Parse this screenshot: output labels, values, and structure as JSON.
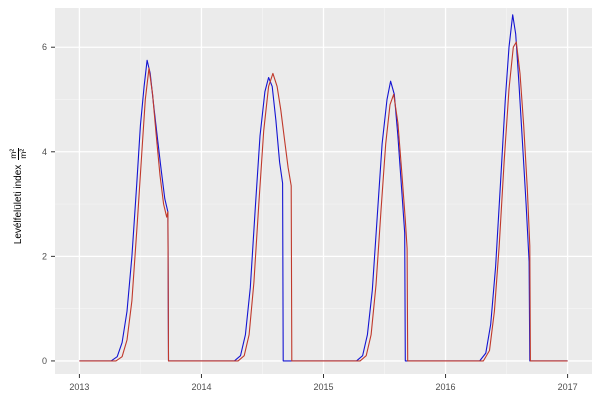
{
  "chart_data": {
    "type": "line",
    "title": "",
    "xlabel": "",
    "ylabel": "Levélfelületi index",
    "unit_numerator": "m²",
    "unit_denominator": "m²",
    "x_ticks": [
      2013,
      2014,
      2015,
      2016,
      2017
    ],
    "y_ticks": [
      0,
      2,
      4,
      6
    ],
    "x_range": [
      2012.8,
      2017.2
    ],
    "y_range": [
      -0.25,
      6.75
    ],
    "legend": "none",
    "grid": "on",
    "colors": {
      "panel_bg": "#EBEBEB",
      "grid_major": "#FFFFFF",
      "grid_minor": "#F4F4F4",
      "tick_mark": "#333333",
      "tick_label": "#4D4D4D",
      "series_blue": "#1414D2",
      "series_red": "#C0392B"
    },
    "series": [
      {
        "name": "blue-line",
        "color": "#1414D2",
        "points": [
          [
            2013.0,
            0
          ],
          [
            2013.26,
            0
          ],
          [
            2013.31,
            0.08
          ],
          [
            2013.35,
            0.35
          ],
          [
            2013.39,
            0.95
          ],
          [
            2013.43,
            2.0
          ],
          [
            2013.47,
            3.4
          ],
          [
            2013.5,
            4.5
          ],
          [
            2013.53,
            5.25
          ],
          [
            2013.555,
            5.75
          ],
          [
            2013.58,
            5.5
          ],
          [
            2013.61,
            4.85
          ],
          [
            2013.64,
            4.25
          ],
          [
            2013.67,
            3.65
          ],
          [
            2013.7,
            3.1
          ],
          [
            2013.725,
            2.85
          ],
          [
            2013.73,
            0
          ],
          [
            2014.0,
            0
          ],
          [
            2014.27,
            0
          ],
          [
            2014.32,
            0.1
          ],
          [
            2014.36,
            0.5
          ],
          [
            2014.4,
            1.4
          ],
          [
            2014.44,
            2.9
          ],
          [
            2014.48,
            4.3
          ],
          [
            2014.52,
            5.15
          ],
          [
            2014.55,
            5.42
          ],
          [
            2014.58,
            5.25
          ],
          [
            2014.61,
            4.6
          ],
          [
            2014.64,
            3.8
          ],
          [
            2014.665,
            3.4
          ],
          [
            2014.67,
            0
          ],
          [
            2015.0,
            0
          ],
          [
            2015.27,
            0
          ],
          [
            2015.32,
            0.1
          ],
          [
            2015.36,
            0.5
          ],
          [
            2015.4,
            1.35
          ],
          [
            2015.44,
            2.75
          ],
          [
            2015.48,
            4.15
          ],
          [
            2015.52,
            5.0
          ],
          [
            2015.55,
            5.35
          ],
          [
            2015.58,
            5.1
          ],
          [
            2015.61,
            4.3
          ],
          [
            2015.64,
            3.3
          ],
          [
            2015.665,
            2.45
          ],
          [
            2015.67,
            0
          ],
          [
            2016.0,
            0
          ],
          [
            2016.28,
            0
          ],
          [
            2016.33,
            0.15
          ],
          [
            2016.37,
            0.7
          ],
          [
            2016.41,
            1.8
          ],
          [
            2016.45,
            3.4
          ],
          [
            2016.49,
            5.0
          ],
          [
            2016.52,
            6.0
          ],
          [
            2016.55,
            6.62
          ],
          [
            2016.575,
            6.25
          ],
          [
            2016.6,
            5.35
          ],
          [
            2016.63,
            4.2
          ],
          [
            2016.66,
            3.0
          ],
          [
            2016.685,
            1.9
          ],
          [
            2016.69,
            0
          ],
          [
            2017.0,
            0
          ]
        ]
      },
      {
        "name": "red-line",
        "color": "#C0392B",
        "points": [
          [
            2013.0,
            0
          ],
          [
            2013.3,
            0
          ],
          [
            2013.35,
            0.08
          ],
          [
            2013.39,
            0.4
          ],
          [
            2013.43,
            1.15
          ],
          [
            2013.47,
            2.5
          ],
          [
            2013.51,
            3.95
          ],
          [
            2013.54,
            5.0
          ],
          [
            2013.57,
            5.6
          ],
          [
            2013.6,
            5.1
          ],
          [
            2013.63,
            4.3
          ],
          [
            2013.66,
            3.55
          ],
          [
            2013.69,
            3.0
          ],
          [
            2013.715,
            2.75
          ],
          [
            2013.725,
            2.85
          ],
          [
            2013.73,
            0
          ],
          [
            2014.0,
            0
          ],
          [
            2014.3,
            0
          ],
          [
            2014.35,
            0.1
          ],
          [
            2014.39,
            0.5
          ],
          [
            2014.43,
            1.5
          ],
          [
            2014.47,
            3.0
          ],
          [
            2014.51,
            4.4
          ],
          [
            2014.55,
            5.25
          ],
          [
            2014.585,
            5.5
          ],
          [
            2014.62,
            5.25
          ],
          [
            2014.65,
            4.8
          ],
          [
            2014.68,
            4.25
          ],
          [
            2014.71,
            3.7
          ],
          [
            2014.735,
            3.35
          ],
          [
            2014.74,
            0
          ],
          [
            2015.0,
            0
          ],
          [
            2015.3,
            0
          ],
          [
            2015.35,
            0.1
          ],
          [
            2015.39,
            0.5
          ],
          [
            2015.43,
            1.45
          ],
          [
            2015.47,
            2.85
          ],
          [
            2015.51,
            4.15
          ],
          [
            2015.545,
            4.9
          ],
          [
            2015.575,
            5.1
          ],
          [
            2015.61,
            4.55
          ],
          [
            2015.64,
            3.65
          ],
          [
            2015.67,
            2.7
          ],
          [
            2015.685,
            2.15
          ],
          [
            2015.69,
            0
          ],
          [
            2016.0,
            0
          ],
          [
            2016.31,
            0
          ],
          [
            2016.36,
            0.2
          ],
          [
            2016.4,
            0.95
          ],
          [
            2016.44,
            2.2
          ],
          [
            2016.48,
            3.8
          ],
          [
            2016.52,
            5.2
          ],
          [
            2016.555,
            6.0
          ],
          [
            2016.58,
            6.1
          ],
          [
            2016.61,
            5.5
          ],
          [
            2016.64,
            4.5
          ],
          [
            2016.67,
            3.3
          ],
          [
            2016.69,
            2.2
          ],
          [
            2016.695,
            0
          ],
          [
            2017.0,
            0
          ]
        ]
      }
    ]
  }
}
